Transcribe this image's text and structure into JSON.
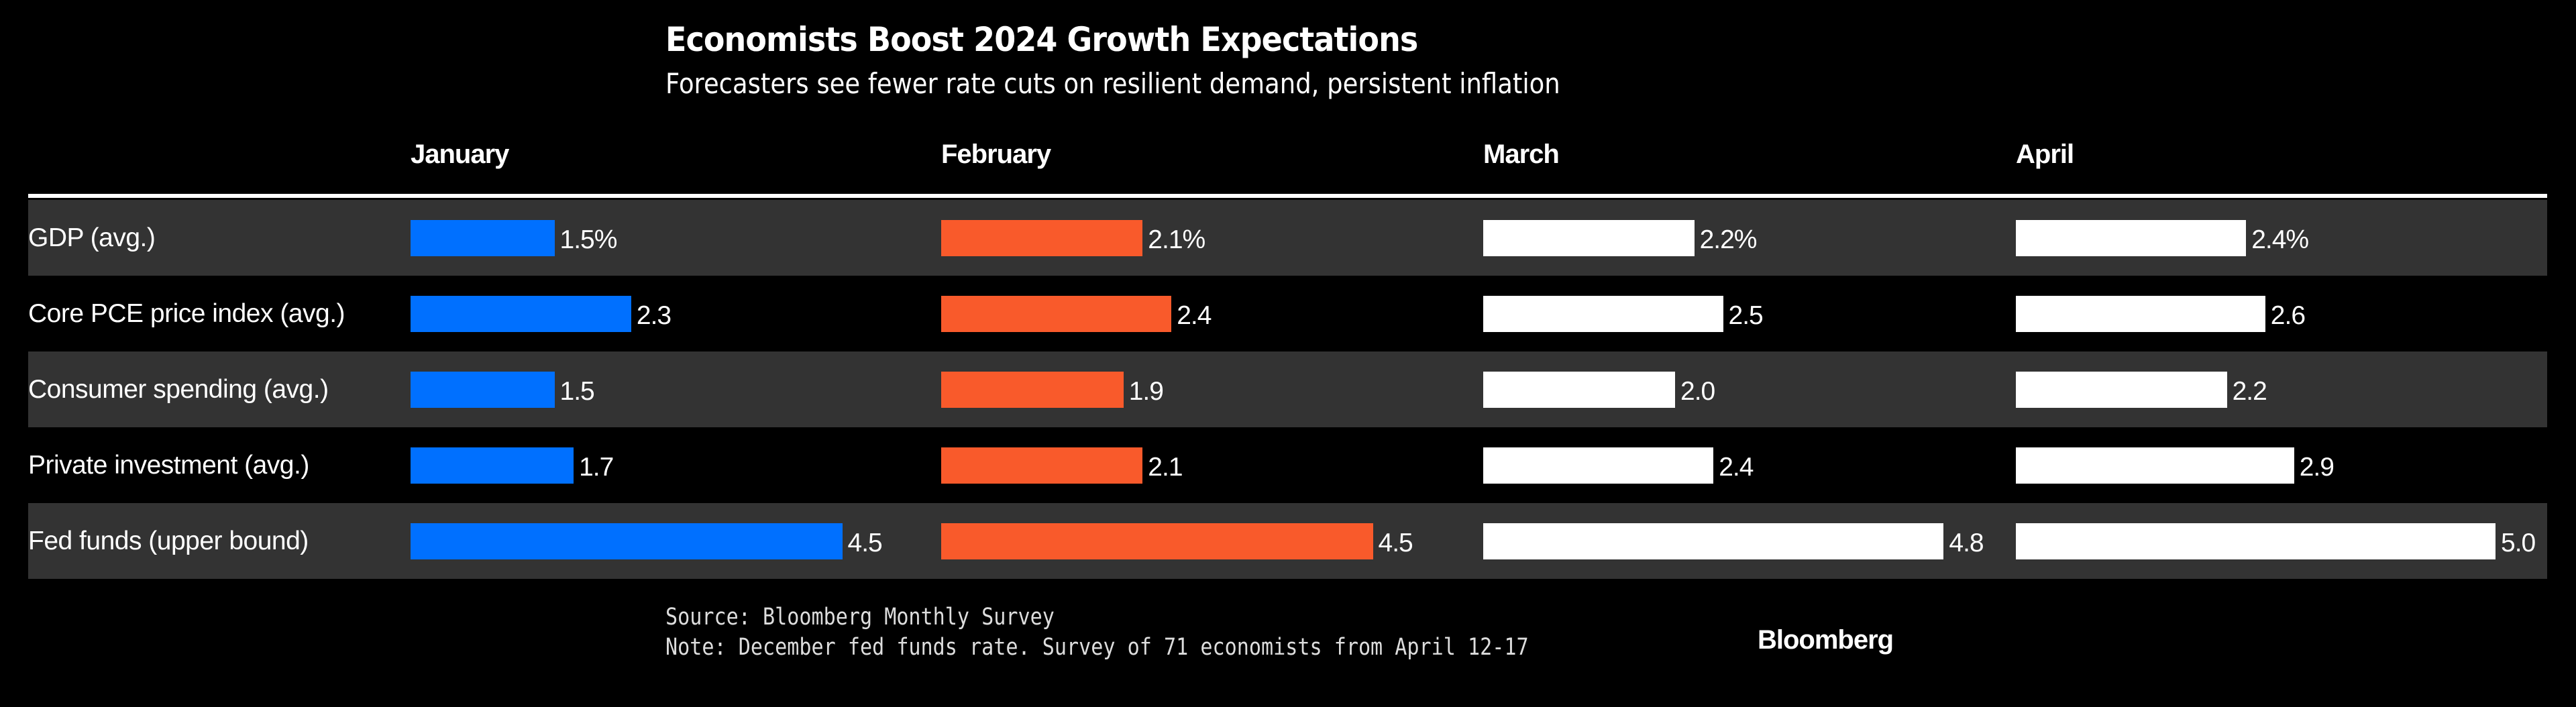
{
  "chart_data": {
    "type": "bar",
    "title": "Economists Boost 2024 Growth Expectations",
    "subtitle": "Forecasters see fewer rate cuts on resilient demand, persistent inflation",
    "months": [
      "January",
      "February",
      "March",
      "April"
    ],
    "month_colors": [
      "#0070FF",
      "#F95A2B",
      "#FFFFFF",
      "#FFFFFF"
    ],
    "categories": [
      "GDP (avg.)",
      "Core PCE price index (avg.)",
      "Consumer spending (avg.)",
      "Private investment (avg.)",
      "Fed funds (upper bound)"
    ],
    "series": [
      {
        "name": "January",
        "values": [
          1.5,
          2.3,
          1.5,
          1.7,
          4.5
        ],
        "labels": [
          "1.5%",
          "2.3",
          "1.5",
          "1.7",
          "4.5"
        ]
      },
      {
        "name": "February",
        "values": [
          2.1,
          2.4,
          1.9,
          2.1,
          4.5
        ],
        "labels": [
          "2.1%",
          "2.4",
          "1.9",
          "2.1",
          "4.5"
        ]
      },
      {
        "name": "March",
        "values": [
          2.2,
          2.5,
          2.0,
          2.4,
          4.8
        ],
        "labels": [
          "2.2%",
          "2.5",
          "2.0",
          "2.4",
          "4.8"
        ]
      },
      {
        "name": "April",
        "values": [
          2.4,
          2.6,
          2.2,
          2.9,
          5.0
        ],
        "labels": [
          "2.4%",
          "2.6",
          "2.2",
          "2.9",
          "5.0"
        ]
      }
    ],
    "xlim": [
      0,
      5.0
    ]
  },
  "footer": {
    "source": "Source: Bloomberg Monthly Survey",
    "note": "Note: December fed funds rate. Survey of 71 economists from April 12-17",
    "logo": "Bloomberg"
  }
}
